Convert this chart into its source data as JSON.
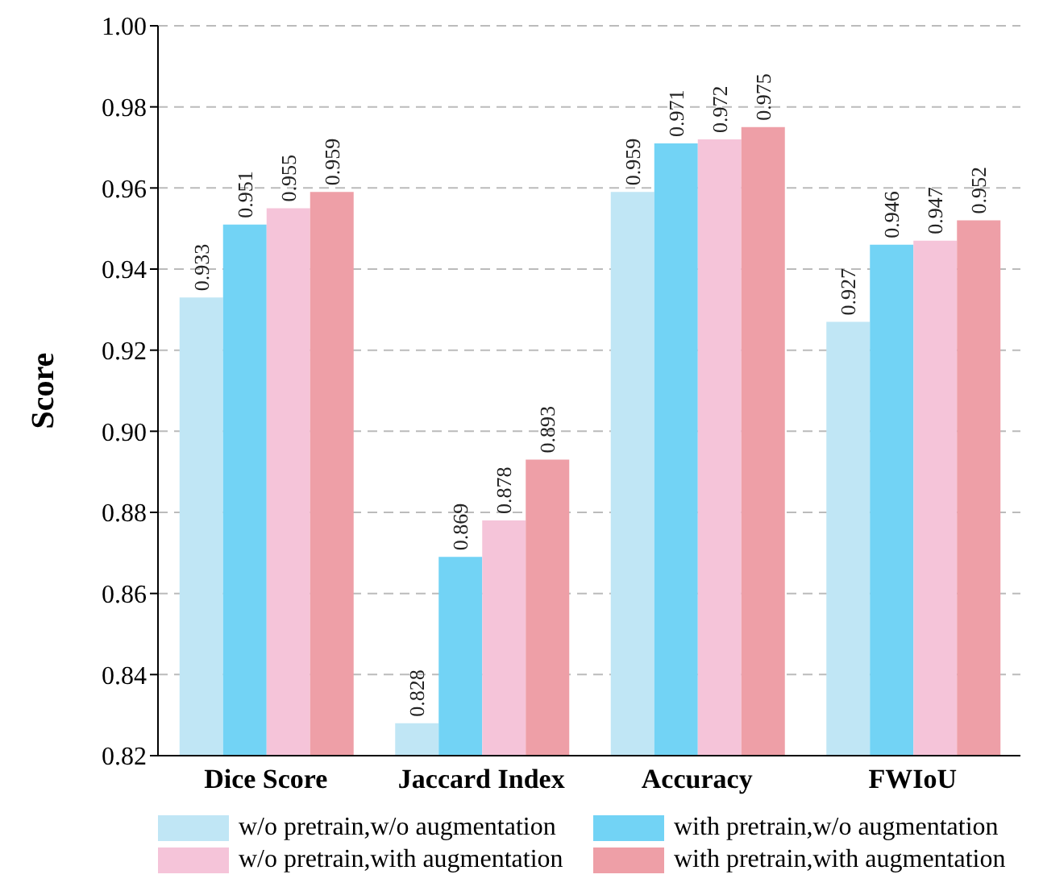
{
  "chart_data": {
    "type": "bar",
    "ylabel": "Score",
    "categories": [
      "Dice Score",
      "Jaccard Index",
      "Accuracy",
      "FWIoU"
    ],
    "series": [
      {
        "name": "w/o pretrain,w/o augmentation",
        "color": "#c0e6f5",
        "values": [
          0.933,
          0.828,
          0.959,
          0.927
        ]
      },
      {
        "name": "with pretrain,w/o augmentation",
        "color": "#72d3f5",
        "values": [
          0.951,
          0.869,
          0.971,
          0.946
        ]
      },
      {
        "name": "w/o pretrain,with augmentation",
        "color": "#f5c4d9",
        "values": [
          0.955,
          0.878,
          0.972,
          0.947
        ]
      },
      {
        "name": "with pretrain,with augmentation",
        "color": "#ee9fa7",
        "values": [
          0.959,
          0.893,
          0.975,
          0.952
        ]
      }
    ],
    "ylim": [
      0.82,
      1.0
    ],
    "yticks": [
      0.82,
      0.84,
      0.86,
      0.88,
      {
        "value": 0.9,
        "label": "0.90"
      },
      0.92,
      0.94,
      0.96,
      0.98,
      {
        "value": 1.0,
        "label": "1.00"
      }
    ],
    "grid": "y",
    "legend": "bottom",
    "data_labels": true
  }
}
